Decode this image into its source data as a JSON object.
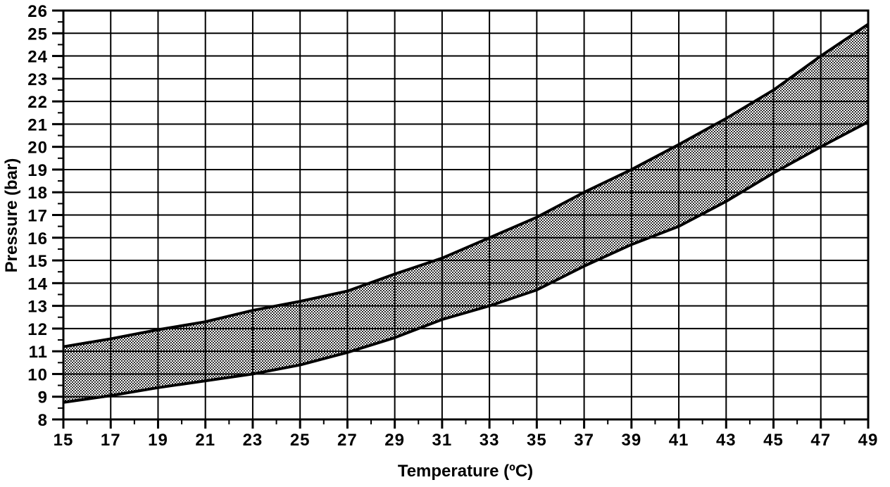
{
  "colors": {
    "ink": "#000000",
    "paper": "#ffffff"
  },
  "chart_data": {
    "type": "area",
    "title": "",
    "xlabel": "Temperature (ºC)",
    "ylabel": "Pressure (bar)",
    "xlim": [
      15,
      49
    ],
    "ylim": [
      8,
      26
    ],
    "x_major_step": 2,
    "x_minor_step": 1,
    "y_major_step": 1,
    "y_minor_step": 0.5,
    "grid": "both",
    "legend": "none",
    "band_fill": "halftone-dot-pattern",
    "x": [
      15,
      17,
      19,
      21,
      23,
      25,
      27,
      29,
      31,
      33,
      35,
      37,
      39,
      41,
      43,
      45,
      47,
      49
    ],
    "series": [
      {
        "name": "upper_boundary",
        "values": [
          11.2,
          11.55,
          11.95,
          12.3,
          12.8,
          13.2,
          13.65,
          14.4,
          15.1,
          16.0,
          16.9,
          18.0,
          19.0,
          20.1,
          21.25,
          22.5,
          24.0,
          25.4
        ]
      },
      {
        "name": "lower_boundary",
        "values": [
          8.75,
          9.05,
          9.4,
          9.7,
          10.0,
          10.4,
          10.95,
          11.6,
          12.4,
          13.0,
          13.7,
          14.75,
          15.7,
          16.5,
          17.6,
          18.85,
          20.0,
          21.1
        ]
      }
    ],
    "x_tick_labels": [
      "15",
      "17",
      "19",
      "21",
      "23",
      "25",
      "27",
      "29",
      "31",
      "33",
      "35",
      "37",
      "39",
      "41",
      "43",
      "45",
      "47",
      "49"
    ],
    "y_tick_labels": [
      "8",
      "9",
      "10",
      "11",
      "12",
      "13",
      "14",
      "15",
      "16",
      "17",
      "18",
      "19",
      "20",
      "21",
      "22",
      "23",
      "24",
      "25",
      "26"
    ]
  }
}
